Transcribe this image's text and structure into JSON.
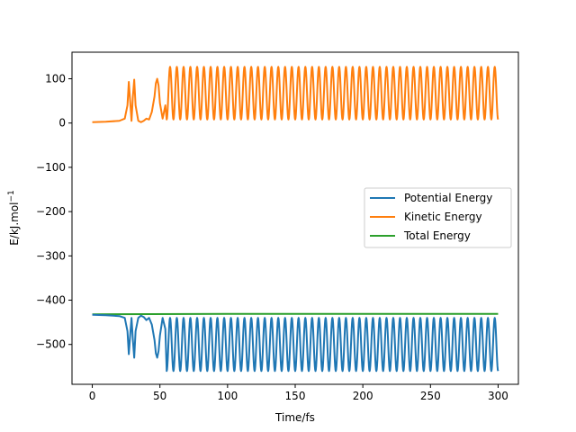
{
  "chart_data": {
    "type": "line",
    "title": "",
    "xlabel": "Time/fs",
    "ylabel_parts": {
      "prefix": "E/kJ.mol",
      "superscript": "−1"
    },
    "xlim": [
      -15,
      315
    ],
    "ylim": [
      -590,
      160
    ],
    "xticks": [
      0,
      50,
      100,
      150,
      200,
      250,
      300
    ],
    "yticks": [
      100,
      0,
      -100,
      -200,
      -300,
      -400,
      -500
    ],
    "ytick_labels": [
      "100",
      "0",
      "−100",
      "−200",
      "−300",
      "−400",
      "−500"
    ],
    "legend_location": "center-right",
    "series": [
      {
        "name": "Potential Energy",
        "color": "#1f77b4",
        "x": [
          0,
          10,
          20,
          24,
          26,
          27,
          28,
          29,
          30,
          31,
          32,
          34,
          36,
          38,
          40,
          42,
          44,
          46,
          47,
          48,
          49,
          50,
          52,
          54,
          56,
          58,
          60
        ],
        "y": [
          -433,
          -434,
          -436,
          -440,
          -470,
          -522,
          -480,
          -440,
          -490,
          -530,
          -470,
          -440,
          -435,
          -438,
          -445,
          -440,
          -455,
          -490,
          -520,
          -530,
          -515,
          -480,
          -440,
          -465,
          -535,
          -560,
          -545
        ],
        "osc_from_x": 55,
        "osc_to_x": 300,
        "osc_period": 5.0,
        "osc_phase_x": 52.5,
        "osc_min": -560,
        "osc_max": -440
      },
      {
        "name": "Kinetic Energy",
        "color": "#ff7f0e",
        "x": [
          0,
          10,
          20,
          24,
          26,
          27,
          28,
          29,
          30,
          31,
          32,
          34,
          36,
          38,
          40,
          42,
          44,
          46,
          47,
          48,
          49,
          50,
          52,
          54,
          56,
          58,
          60
        ],
        "y": [
          2,
          3,
          5,
          10,
          40,
          93,
          50,
          5,
          60,
          98,
          40,
          5,
          2,
          5,
          10,
          8,
          25,
          60,
          90,
          100,
          85,
          45,
          10,
          40,
          105,
          127,
          112
        ],
        "osc_from_x": 55,
        "osc_to_x": 300,
        "osc_period": 5.0,
        "osc_phase_x": 52.5,
        "osc_min": 8,
        "osc_max": 127
      },
      {
        "name": "Total Energy",
        "color": "#2ca02c",
        "x": [
          0,
          100,
          200,
          300
        ],
        "y": [
          -432,
          -431,
          -431,
          -431
        ]
      }
    ]
  }
}
